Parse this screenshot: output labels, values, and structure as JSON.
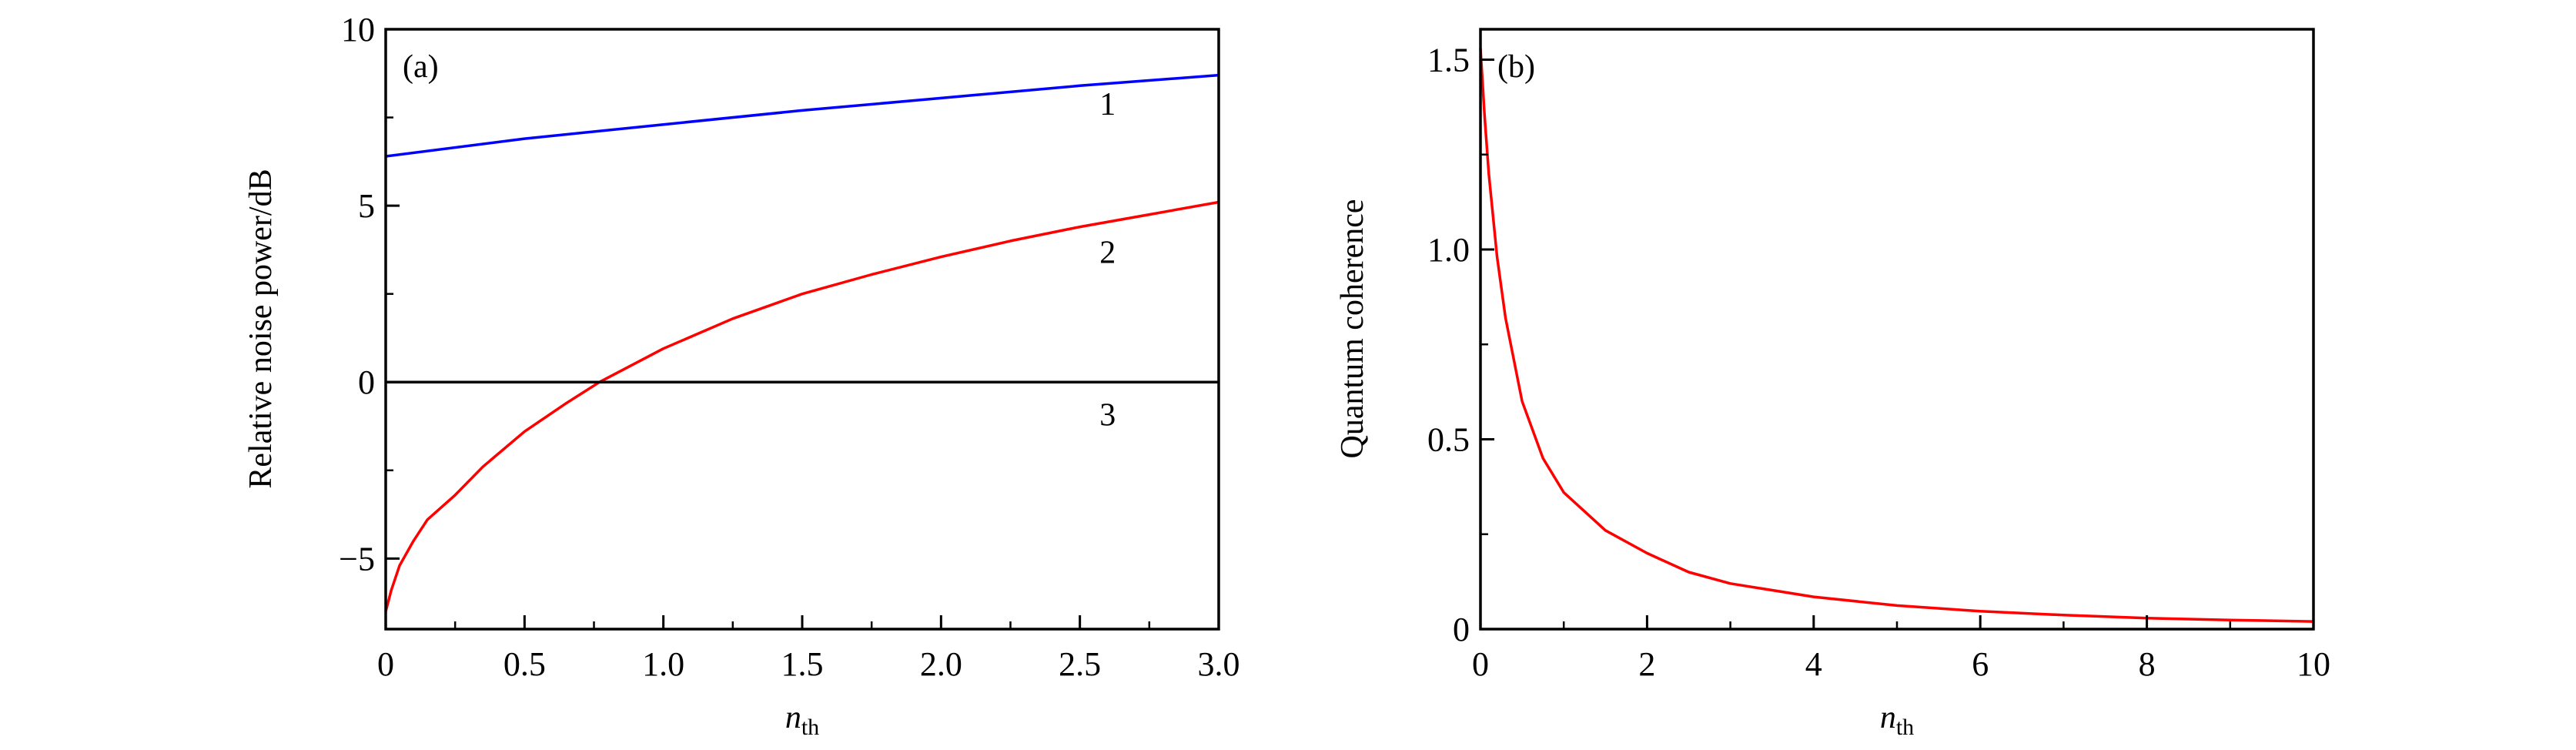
{
  "chart_data": [
    {
      "type": "line",
      "panel_label": "(a)",
      "xlabel": {
        "main": "n",
        "sub": "th"
      },
      "ylabel": "Relative noise power/dB",
      "xlim": [
        0,
        3.0
      ],
      "ylim": [
        -7,
        10
      ],
      "xticks": [
        0,
        0.5,
        1.0,
        1.5,
        2.0,
        2.5,
        3.0
      ],
      "xtick_labels": [
        "0",
        "0.5",
        "1.0",
        "1.5",
        "2.0",
        "2.5",
        "3.0"
      ],
      "yticks": [
        -5,
        0,
        5,
        10
      ],
      "ytick_labels": [
        "−5",
        "0",
        "5",
        "10"
      ],
      "grid": false,
      "series": [
        {
          "label": "1",
          "color": "#0000ff",
          "x": [
            0,
            0.5,
            1.0,
            1.5,
            2.0,
            2.5,
            3.0
          ],
          "y": [
            6.4,
            6.9,
            7.3,
            7.7,
            8.05,
            8.4,
            8.7
          ],
          "label_at": [
            2.6,
            7.9
          ]
        },
        {
          "label": "2",
          "color": "#ff0000",
          "x": [
            0,
            0.02,
            0.05,
            0.1,
            0.15,
            0.25,
            0.35,
            0.5,
            0.65,
            0.77,
            1.0,
            1.25,
            1.5,
            1.75,
            2.0,
            2.25,
            2.5,
            2.75,
            3.0
          ],
          "y": [
            -6.5,
            -5.9,
            -5.2,
            -4.5,
            -3.9,
            -3.2,
            -2.4,
            -1.4,
            -0.6,
            0,
            0.95,
            1.8,
            2.5,
            3.05,
            3.55,
            4.0,
            4.4,
            4.75,
            5.1
          ],
          "label_at": [
            2.6,
            3.7
          ]
        },
        {
          "label": "3",
          "color": "#000000",
          "x": [
            0,
            3.0
          ],
          "y": [
            0,
            0
          ],
          "label_at": [
            2.6,
            -0.9
          ]
        }
      ]
    },
    {
      "type": "line",
      "panel_label": "(b)",
      "xlabel": {
        "main": "n",
        "sub": "th"
      },
      "ylabel": "Quantum coherence",
      "xlim": [
        0,
        10
      ],
      "ylim": [
        0,
        1.58
      ],
      "xticks": [
        0,
        2,
        4,
        6,
        8,
        10
      ],
      "xtick_labels": [
        "0",
        "2",
        "4",
        "6",
        "8",
        "10"
      ],
      "yticks": [
        0,
        0.5,
        1.0,
        1.5
      ],
      "ytick_labels": [
        "0",
        "0.5",
        "1.0",
        "1.5"
      ],
      "grid": false,
      "series": [
        {
          "color": "#ff0000",
          "x": [
            0,
            0.05,
            0.1,
            0.2,
            0.3,
            0.5,
            0.75,
            1.0,
            1.5,
            2,
            2.5,
            3,
            4,
            5,
            6,
            7,
            8,
            9,
            10
          ],
          "y": [
            1.53,
            1.35,
            1.2,
            0.98,
            0.82,
            0.6,
            0.45,
            0.36,
            0.26,
            0.2,
            0.15,
            0.12,
            0.085,
            0.062,
            0.047,
            0.037,
            0.029,
            0.024,
            0.02
          ]
        }
      ]
    }
  ]
}
